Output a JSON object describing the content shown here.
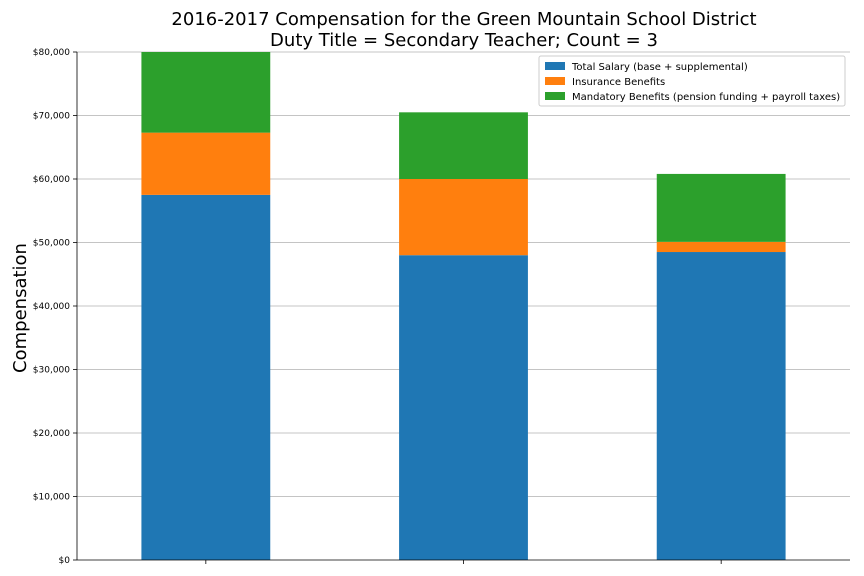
{
  "chart_data": {
    "type": "bar",
    "stacked": true,
    "title": "2016-2017 Compensation for the Green Mountain School District",
    "subtitle": "Duty Title = Secondary Teacher; Count = 3",
    "xlabel": "",
    "ylabel": "Compensation",
    "ylim": [
      0,
      80000
    ],
    "yticks": [
      "$0",
      "$10,000",
      "$20,000",
      "$30,000",
      "$40,000",
      "$50,000",
      "$60,000",
      "$70,000",
      "$80,000"
    ],
    "ytick_values": [
      0,
      10000,
      20000,
      30000,
      40000,
      50000,
      60000,
      70000,
      80000
    ],
    "categories": [
      "",
      "",
      ""
    ],
    "grid": "horizontal",
    "legend_position": "top-right",
    "series": [
      {
        "name": "Total Salary (base + supplemental)",
        "color": "#1f77b4",
        "values": [
          57500,
          48000,
          48500
        ]
      },
      {
        "name": "Insurance Benefits",
        "color": "#ff7f0e",
        "values": [
          9800,
          12000,
          1600
        ]
      },
      {
        "name": "Mandatory Benefits (pension funding + payroll taxes)",
        "color": "#2ca02c",
        "values": [
          12700,
          10500,
          10700
        ]
      }
    ]
  }
}
